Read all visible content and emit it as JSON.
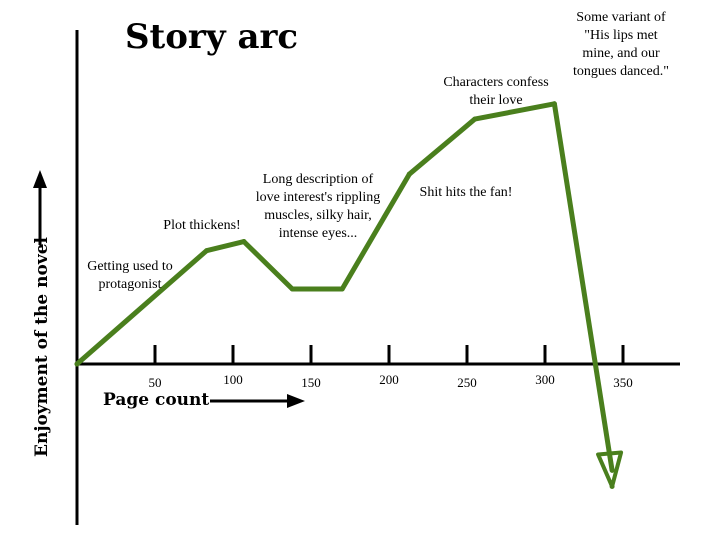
{
  "chart_data": {
    "type": "line",
    "title": "Story arc",
    "xlabel": "Page count",
    "ylabel": "Enjoyment of the novel",
    "grid": false,
    "legend": "none",
    "x_ticks": [
      50,
      100,
      150,
      200,
      250,
      300,
      350
    ],
    "xlim": [
      0,
      350
    ],
    "ylim": [
      -9,
      20
    ],
    "series": [
      {
        "color": "#4a7f1d",
        "points": [
          {
            "x": 0,
            "y": 0
          },
          {
            "x": 83,
            "y": 7.4
          },
          {
            "x": 107,
            "y": 8.0
          },
          {
            "x": 138,
            "y": 4.9
          },
          {
            "x": 170,
            "y": 4.9
          },
          {
            "x": 213,
            "y": 12.4
          },
          {
            "x": 255,
            "y": 16.0
          },
          {
            "x": 306,
            "y": 17.0
          },
          {
            "x": 343,
            "y": -8.0
          }
        ]
      }
    ],
    "annotations": [
      {
        "lines": [
          "Getting used to",
          "protagonist"
        ]
      },
      {
        "lines": [
          "Plot thickens!"
        ]
      },
      {
        "lines": [
          "Long description of",
          "love interest's rippling",
          "muscles, silky hair,",
          "intense eyes..."
        ]
      },
      {
        "lines": [
          "Shit hits the fan!"
        ]
      },
      {
        "lines": [
          "Characters confess",
          "their love"
        ]
      },
      {
        "lines": [
          "Some variant of",
          "\"His lips met",
          "mine, and our",
          "tongues danced.\""
        ]
      }
    ]
  }
}
